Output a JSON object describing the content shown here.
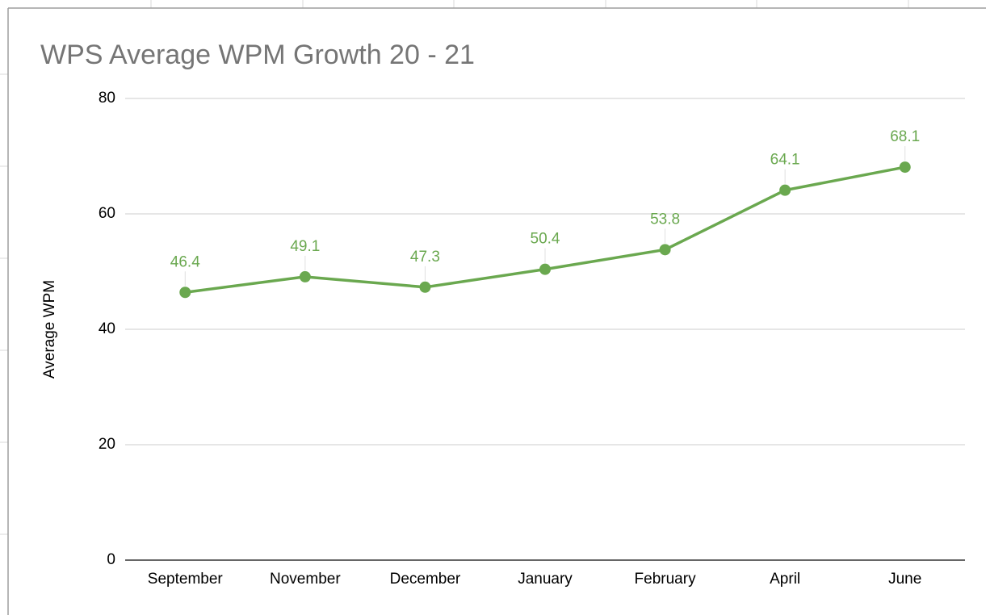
{
  "chart_data": {
    "type": "line",
    "title": "WPS Average WPM Growth 20 - 21",
    "y_label": "Average WPM",
    "categories": [
      "September",
      "November",
      "December",
      "January",
      "February",
      "April",
      "June"
    ],
    "series": [
      {
        "name": "Average WPM",
        "color": "#6aa84f",
        "values": [
          46.4,
          49.1,
          47.3,
          50.4,
          53.8,
          64.1,
          68.1
        ]
      }
    ],
    "ylim": [
      0,
      80
    ],
    "yticks": [
      0,
      20,
      40,
      60,
      80
    ],
    "grid": true
  }
}
